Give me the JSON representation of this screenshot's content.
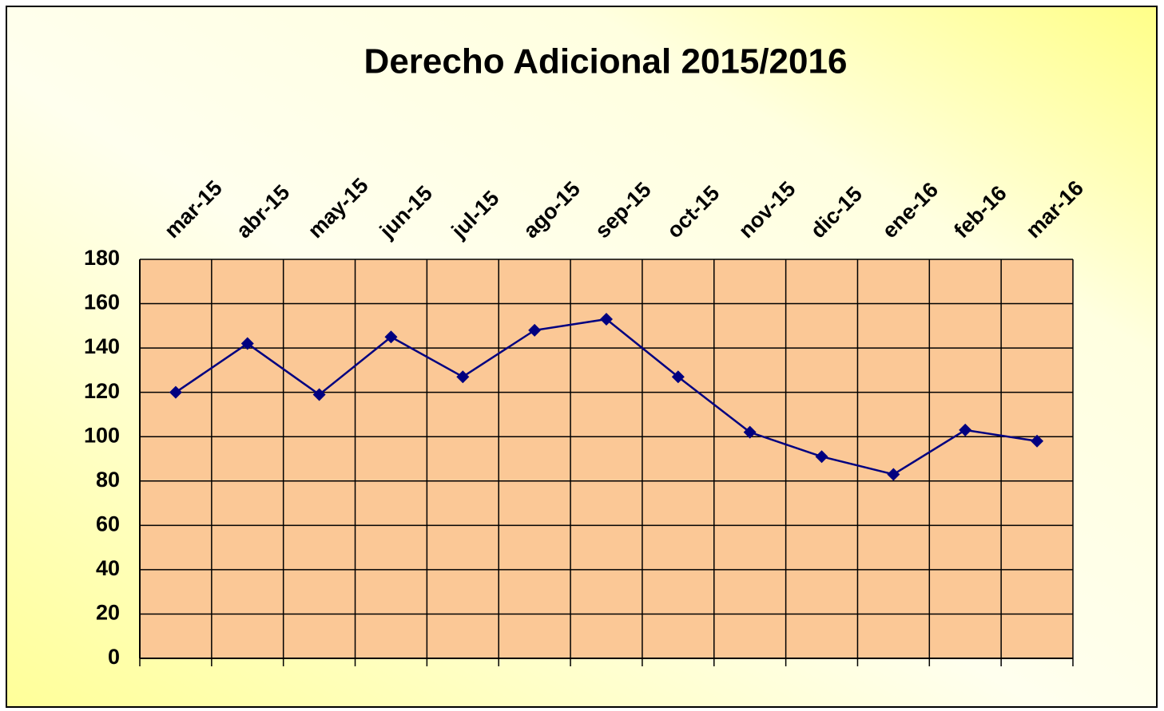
{
  "chart_data": {
    "type": "line",
    "title": "Derecho Adicional 2015/2016",
    "categories": [
      "mar-15",
      "abr-15",
      "may-15",
      "jun-15",
      "jul-15",
      "ago-15",
      "sep-15",
      "oct-15",
      "nov-15",
      "dic-15",
      "ene-16",
      "feb-16",
      "mar-16"
    ],
    "series": [
      {
        "name": "Derecho Adicional",
        "color": "#000080",
        "values": [
          120,
          142,
          119,
          145,
          127,
          148,
          153,
          127,
          102,
          91,
          83,
          103,
          98
        ]
      }
    ],
    "ylim": [
      0,
      180
    ],
    "yticks": [
      0,
      20,
      40,
      60,
      80,
      100,
      120,
      140,
      160,
      180
    ],
    "grid": true
  }
}
